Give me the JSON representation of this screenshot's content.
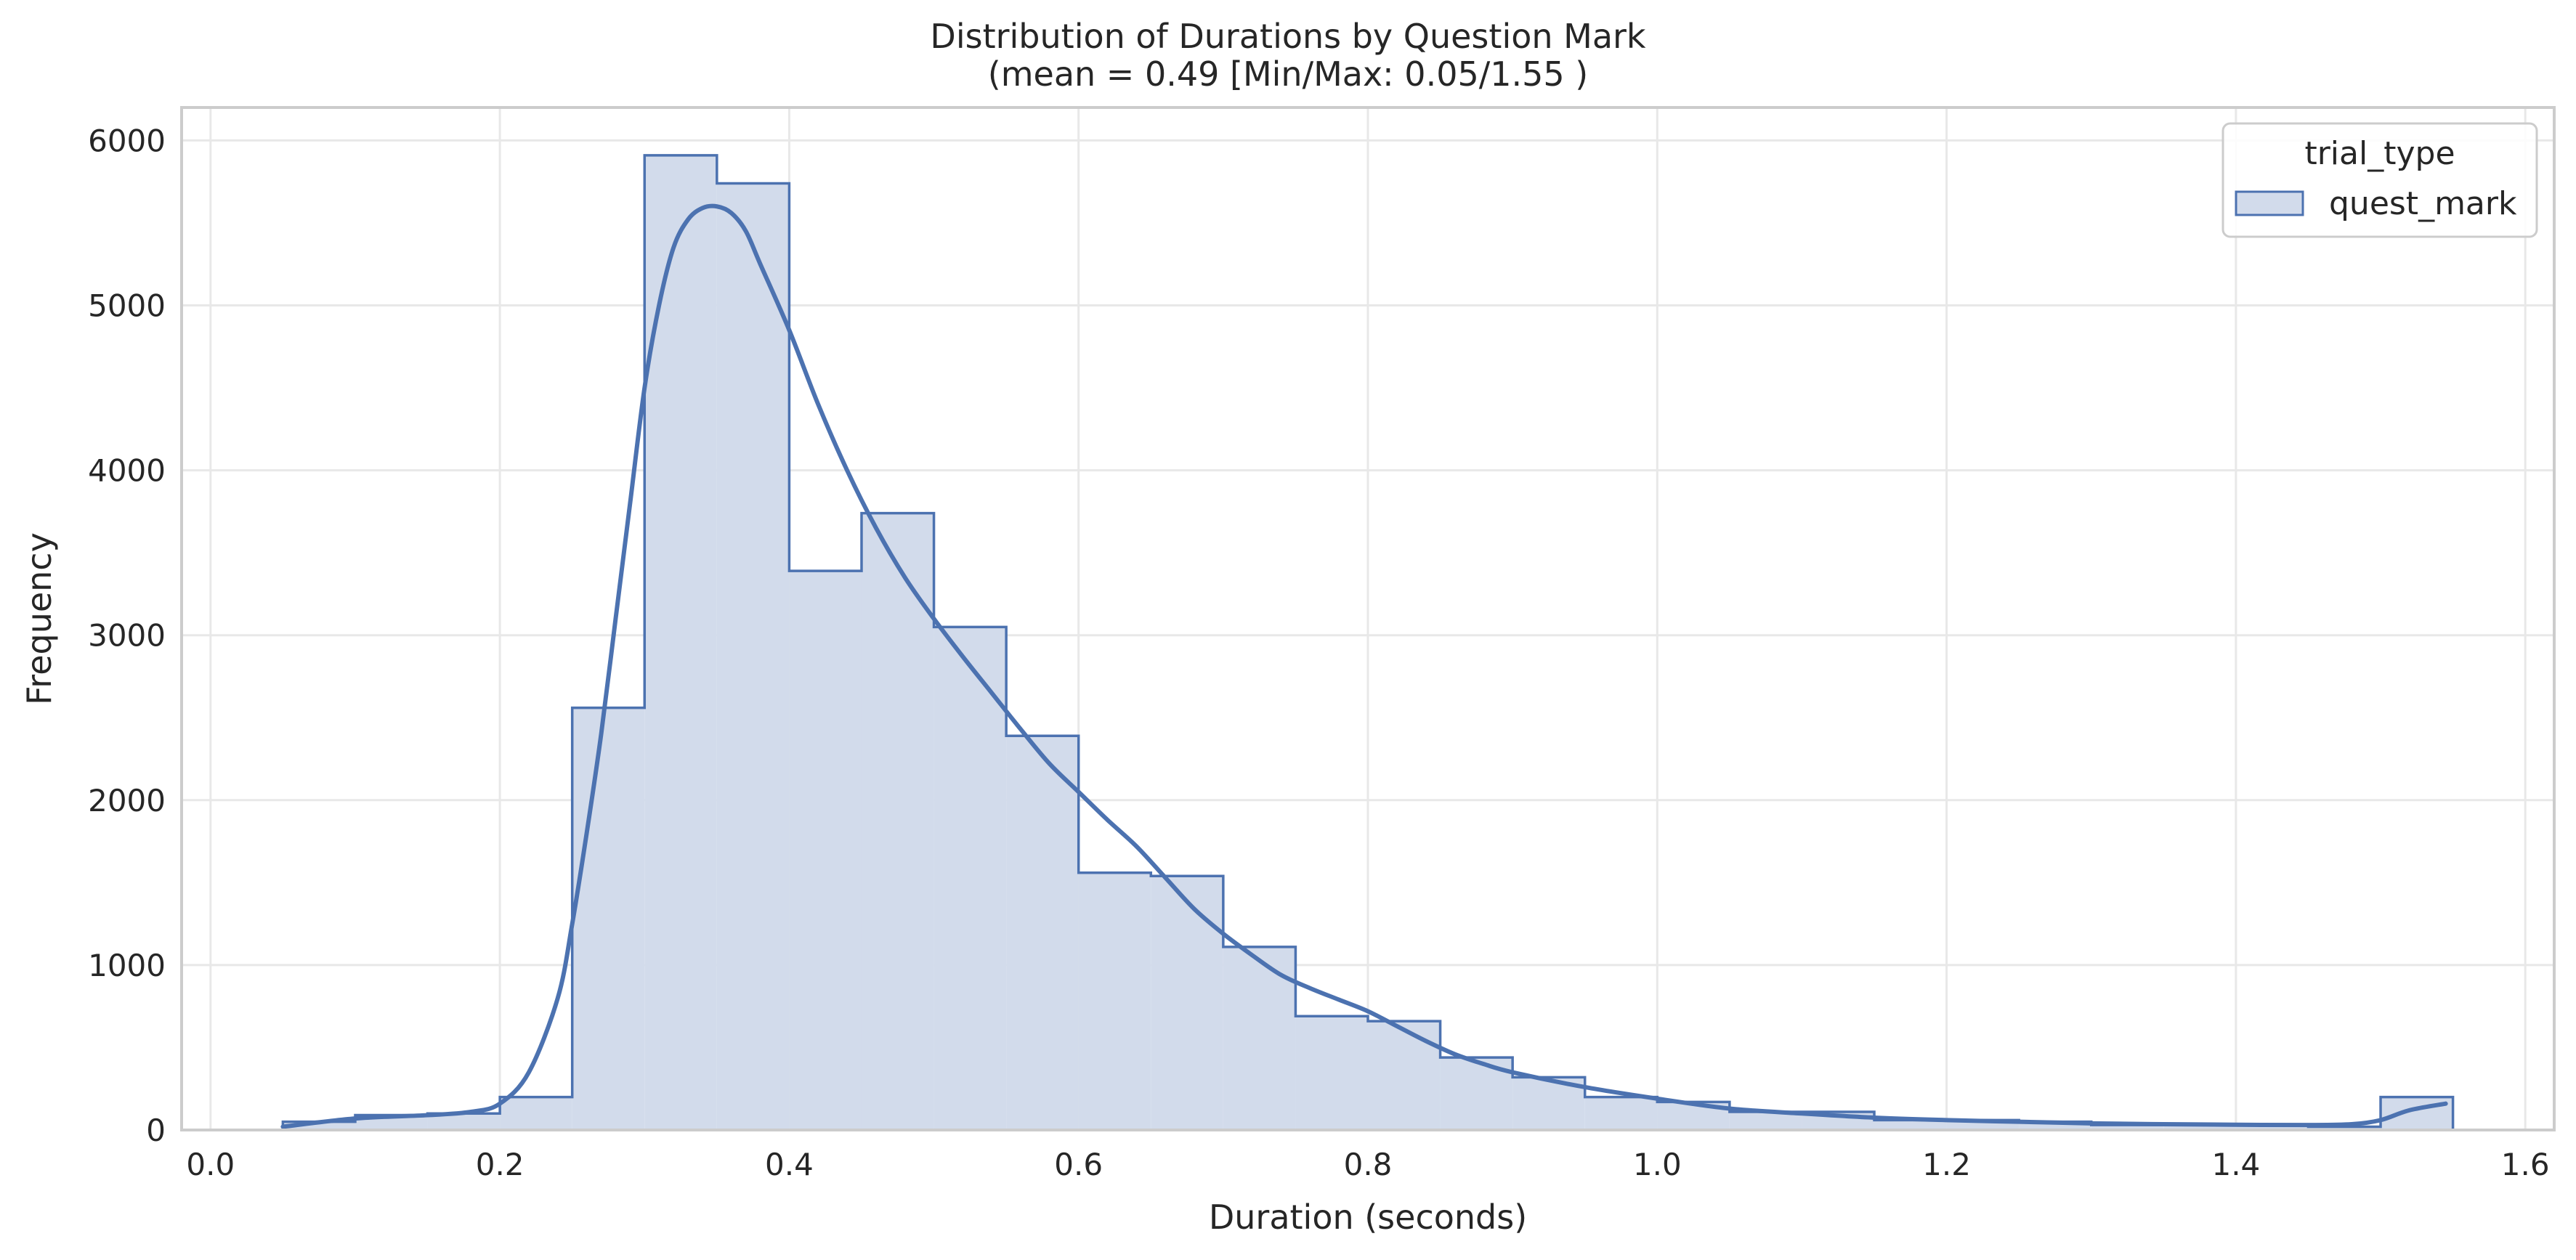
{
  "chart_data": {
    "type": "histogram",
    "title": "Distribution of Durations by Question Mark",
    "subtitle": "(mean = 0.49 [Min/Max: 0.05/1.55 )",
    "xlabel": "Duration (seconds)",
    "ylabel": "Frequency",
    "xlim": [
      -0.02,
      1.62
    ],
    "ylim": [
      0,
      6200
    ],
    "x_ticks": [
      0.0,
      0.2,
      0.4,
      0.6,
      0.8,
      1.0,
      1.2,
      1.4,
      1.6
    ],
    "x_tick_labels": [
      "0.0",
      "0.2",
      "0.4",
      "0.6",
      "0.8",
      "1.0",
      "1.2",
      "1.4",
      "1.6"
    ],
    "y_ticks": [
      0,
      1000,
      2000,
      3000,
      4000,
      5000,
      6000
    ],
    "y_tick_labels": [
      "0",
      "1000",
      "2000",
      "3000",
      "4000",
      "5000",
      "6000"
    ],
    "grid": true,
    "legend": {
      "title": "trial_type",
      "placement": "top-right",
      "entries": [
        "quest_mark"
      ]
    },
    "colors": {
      "line": "#4c72b0",
      "fill": "#d2dbeb",
      "grid": "#e8e8e8",
      "frame": "#cccccc"
    },
    "series": [
      {
        "name": "quest_mark",
        "bins": [
          {
            "x0": 0.05,
            "x1": 0.1,
            "count": 50
          },
          {
            "x0": 0.1,
            "x1": 0.15,
            "count": 90
          },
          {
            "x0": 0.15,
            "x1": 0.2,
            "count": 100
          },
          {
            "x0": 0.2,
            "x1": 0.25,
            "count": 200
          },
          {
            "x0": 0.25,
            "x1": 0.3,
            "count": 2560
          },
          {
            "x0": 0.3,
            "x1": 0.35,
            "count": 5910
          },
          {
            "x0": 0.35,
            "x1": 0.4,
            "count": 5740
          },
          {
            "x0": 0.4,
            "x1": 0.45,
            "count": 3390
          },
          {
            "x0": 0.45,
            "x1": 0.5,
            "count": 3740
          },
          {
            "x0": 0.5,
            "x1": 0.55,
            "count": 3050
          },
          {
            "x0": 0.55,
            "x1": 0.6,
            "count": 2390
          },
          {
            "x0": 0.6,
            "x1": 0.65,
            "count": 1560
          },
          {
            "x0": 0.65,
            "x1": 0.7,
            "count": 1540
          },
          {
            "x0": 0.7,
            "x1": 0.75,
            "count": 1110
          },
          {
            "x0": 0.75,
            "x1": 0.8,
            "count": 690
          },
          {
            "x0": 0.8,
            "x1": 0.85,
            "count": 660
          },
          {
            "x0": 0.85,
            "x1": 0.9,
            "count": 440
          },
          {
            "x0": 0.9,
            "x1": 0.95,
            "count": 320
          },
          {
            "x0": 0.95,
            "x1": 1.0,
            "count": 200
          },
          {
            "x0": 1.0,
            "x1": 1.05,
            "count": 170
          },
          {
            "x0": 1.05,
            "x1": 1.1,
            "count": 110
          },
          {
            "x0": 1.1,
            "x1": 1.15,
            "count": 110
          },
          {
            "x0": 1.15,
            "x1": 1.2,
            "count": 60
          },
          {
            "x0": 1.2,
            "x1": 1.25,
            "count": 60
          },
          {
            "x0": 1.25,
            "x1": 1.3,
            "count": 50
          },
          {
            "x0": 1.3,
            "x1": 1.35,
            "count": 30
          },
          {
            "x0": 1.35,
            "x1": 1.4,
            "count": 30
          },
          {
            "x0": 1.4,
            "x1": 1.45,
            "count": 30
          },
          {
            "x0": 1.45,
            "x1": 1.5,
            "count": 20
          },
          {
            "x0": 1.5,
            "x1": 1.55,
            "count": 200
          }
        ],
        "kde": {
          "x": [
            0.05,
            0.1,
            0.15,
            0.18,
            0.2,
            0.22,
            0.24,
            0.25,
            0.26,
            0.27,
            0.28,
            0.29,
            0.3,
            0.31,
            0.32,
            0.33,
            0.34,
            0.35,
            0.36,
            0.37,
            0.38,
            0.4,
            0.42,
            0.44,
            0.46,
            0.48,
            0.5,
            0.52,
            0.54,
            0.56,
            0.58,
            0.6,
            0.62,
            0.64,
            0.66,
            0.68,
            0.7,
            0.72,
            0.74,
            0.76,
            0.78,
            0.8,
            0.82,
            0.84,
            0.86,
            0.88,
            0.9,
            0.95,
            1.0,
            1.05,
            1.1,
            1.15,
            1.2,
            1.25,
            1.3,
            1.35,
            1.4,
            1.45,
            1.48,
            1.5,
            1.52,
            1.545
          ],
          "y": [
            20,
            70,
            90,
            110,
            160,
            350,
            800,
            1250,
            1800,
            2400,
            3100,
            3800,
            4500,
            5000,
            5350,
            5520,
            5590,
            5600,
            5560,
            5450,
            5250,
            4850,
            4400,
            4000,
            3650,
            3350,
            3100,
            2870,
            2650,
            2430,
            2220,
            2050,
            1880,
            1720,
            1530,
            1340,
            1190,
            1060,
            940,
            860,
            790,
            720,
            630,
            540,
            460,
            400,
            350,
            260,
            190,
            130,
            100,
            75,
            60,
            50,
            40,
            35,
            32,
            30,
            35,
            60,
            120,
            160
          ]
        }
      }
    ]
  }
}
